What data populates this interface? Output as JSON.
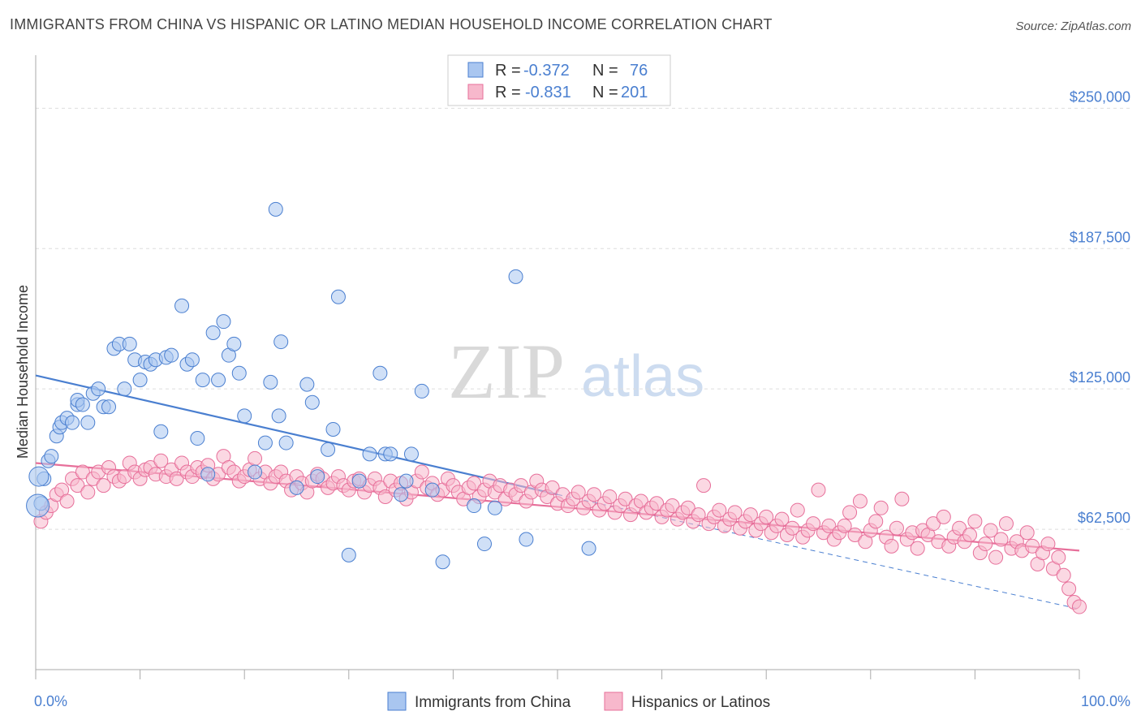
{
  "title": "IMMIGRANTS FROM CHINA VS HISPANIC OR LATINO MEDIAN HOUSEHOLD INCOME CORRELATION CHART",
  "source": "Source: ZipAtlas.com",
  "watermark": {
    "zip": "ZIP",
    "atlas": "atlas"
  },
  "colors": {
    "blue": "#4a7fd0",
    "blue_fill": "#a9c6f0",
    "pink": "#e76f9a",
    "pink_fill": "#f7b8cc",
    "grid": "#dddddd"
  },
  "chart_data": {
    "type": "scatter",
    "xlabel_left": "0.0%",
    "xlabel_right": "100.0%",
    "ylabel": "Median Household Income",
    "xlim": [
      0,
      100
    ],
    "ylim": [
      0,
      270000
    ],
    "yticks": [
      {
        "value": 250000,
        "label": "$250,000"
      },
      {
        "value": 187500,
        "label": "$187,500"
      },
      {
        "value": 125000,
        "label": "$125,000"
      },
      {
        "value": 62500,
        "label": "$62,500"
      }
    ],
    "legend": [
      {
        "r_label": "R =",
        "r_value": "-0.372",
        "n_label": "N =",
        "n_value": "76"
      },
      {
        "r_label": "R =",
        "r_value": "-0.831",
        "n_label": "N =",
        "n_value": "201"
      }
    ],
    "series": [
      {
        "name": "Immigrants from China",
        "trend": {
          "x0": 0,
          "y0": 131000,
          "x1": 50,
          "y1": 78000,
          "x_dash_end": 100,
          "y_dash_end": 27000
        },
        "points": [
          [
            0.5,
            74000
          ],
          [
            0.8,
            85000
          ],
          [
            1.2,
            93000
          ],
          [
            1.5,
            95000
          ],
          [
            2,
            104000
          ],
          [
            2.3,
            108000
          ],
          [
            2.5,
            110000
          ],
          [
            3,
            112000
          ],
          [
            3.5,
            110000
          ],
          [
            4,
            118000
          ],
          [
            4,
            120000
          ],
          [
            4.5,
            118000
          ],
          [
            5,
            110000
          ],
          [
            5.5,
            123000
          ],
          [
            6,
            125000
          ],
          [
            6.5,
            117000
          ],
          [
            7,
            117000
          ],
          [
            7.5,
            143000
          ],
          [
            8,
            145000
          ],
          [
            8.5,
            125000
          ],
          [
            9,
            145000
          ],
          [
            9.5,
            138000
          ],
          [
            10,
            129000
          ],
          [
            10.5,
            137000
          ],
          [
            11,
            136000
          ],
          [
            11.5,
            138000
          ],
          [
            12,
            106000
          ],
          [
            12.5,
            139000
          ],
          [
            13,
            140000
          ],
          [
            14,
            162000
          ],
          [
            14.5,
            136000
          ],
          [
            15,
            138000
          ],
          [
            15.5,
            103000
          ],
          [
            16,
            129000
          ],
          [
            16.5,
            87000
          ],
          [
            17,
            150000
          ],
          [
            17.5,
            129000
          ],
          [
            18,
            155000
          ],
          [
            18.5,
            140000
          ],
          [
            19,
            145000
          ],
          [
            19.5,
            132000
          ],
          [
            20,
            113000
          ],
          [
            21,
            88000
          ],
          [
            22,
            101000
          ],
          [
            22.5,
            128000
          ],
          [
            23,
            205000
          ],
          [
            23.3,
            113000
          ],
          [
            23.5,
            146000
          ],
          [
            24,
            101000
          ],
          [
            25,
            81000
          ],
          [
            26,
            127000
          ],
          [
            26.5,
            119000
          ],
          [
            27,
            86000
          ],
          [
            28,
            98000
          ],
          [
            28.5,
            107000
          ],
          [
            29,
            166000
          ],
          [
            30,
            51000
          ],
          [
            31,
            84000
          ],
          [
            32,
            96000
          ],
          [
            33,
            132000
          ],
          [
            33.5,
            96000
          ],
          [
            34,
            96000
          ],
          [
            35,
            78000
          ],
          [
            35.5,
            84000
          ],
          [
            36,
            96000
          ],
          [
            37,
            124000
          ],
          [
            38,
            80000
          ],
          [
            39,
            48000
          ],
          [
            42,
            73000
          ],
          [
            43,
            56000
          ],
          [
            44,
            72000
          ],
          [
            46,
            175000
          ],
          [
            47,
            58000
          ],
          [
            53,
            54000
          ]
        ]
      },
      {
        "name": "Hispanics or Latinos",
        "trend": {
          "x0": 0,
          "y0": 92000,
          "x1": 100,
          "y1": 53000
        },
        "points": [
          [
            0.5,
            66000
          ],
          [
            1,
            70000
          ],
          [
            1.5,
            73000
          ],
          [
            2,
            78000
          ],
          [
            2.5,
            80000
          ],
          [
            3,
            75000
          ],
          [
            3.5,
            85000
          ],
          [
            4,
            82000
          ],
          [
            4.5,
            88000
          ],
          [
            5,
            79000
          ],
          [
            5.5,
            85000
          ],
          [
            6,
            88000
          ],
          [
            6.5,
            82000
          ],
          [
            7,
            90000
          ],
          [
            7.5,
            86000
          ],
          [
            8,
            84000
          ],
          [
            8.5,
            86000
          ],
          [
            9,
            92000
          ],
          [
            9.5,
            88000
          ],
          [
            10,
            85000
          ],
          [
            10.5,
            89000
          ],
          [
            11,
            90000
          ],
          [
            11.5,
            87000
          ],
          [
            12,
            93000
          ],
          [
            12.5,
            86000
          ],
          [
            13,
            89000
          ],
          [
            13.5,
            85000
          ],
          [
            14,
            92000
          ],
          [
            14.5,
            88000
          ],
          [
            15,
            86000
          ],
          [
            15.5,
            90000
          ],
          [
            16,
            88000
          ],
          [
            16.5,
            91000
          ],
          [
            17,
            85000
          ],
          [
            17.5,
            87000
          ],
          [
            18,
            95000
          ],
          [
            18.5,
            90000
          ],
          [
            19,
            88000
          ],
          [
            19.5,
            84000
          ],
          [
            20,
            86000
          ],
          [
            20.5,
            89000
          ],
          [
            21,
            94000
          ],
          [
            21.5,
            85000
          ],
          [
            22,
            88000
          ],
          [
            22.5,
            83000
          ],
          [
            23,
            86000
          ],
          [
            23.5,
            88000
          ],
          [
            24,
            84000
          ],
          [
            24.5,
            80000
          ],
          [
            25,
            86000
          ],
          [
            25.5,
            83000
          ],
          [
            26,
            79000
          ],
          [
            26.5,
            84000
          ],
          [
            27,
            87000
          ],
          [
            27.5,
            85000
          ],
          [
            28,
            81000
          ],
          [
            28.5,
            83000
          ],
          [
            29,
            86000
          ],
          [
            29.5,
            82000
          ],
          [
            30,
            80000
          ],
          [
            30.5,
            84000
          ],
          [
            31,
            85000
          ],
          [
            31.5,
            79000
          ],
          [
            32,
            82000
          ],
          [
            32.5,
            85000
          ],
          [
            33,
            81000
          ],
          [
            33.5,
            77000
          ],
          [
            34,
            84000
          ],
          [
            34.5,
            80000
          ],
          [
            35,
            83000
          ],
          [
            35.5,
            76000
          ],
          [
            36,
            79000
          ],
          [
            36.5,
            84000
          ],
          [
            37,
            88000
          ],
          [
            37.5,
            81000
          ],
          [
            38,
            83000
          ],
          [
            38.5,
            78000
          ],
          [
            39,
            80000
          ],
          [
            39.5,
            85000
          ],
          [
            40,
            82000
          ],
          [
            40.5,
            79000
          ],
          [
            41,
            76000
          ],
          [
            41.5,
            81000
          ],
          [
            42,
            83000
          ],
          [
            42.5,
            77000
          ],
          [
            43,
            80000
          ],
          [
            43.5,
            84000
          ],
          [
            44,
            79000
          ],
          [
            44.5,
            82000
          ],
          [
            45,
            76000
          ],
          [
            45.5,
            80000
          ],
          [
            46,
            78000
          ],
          [
            46.5,
            82000
          ],
          [
            47,
            75000
          ],
          [
            47.5,
            79000
          ],
          [
            48,
            84000
          ],
          [
            48.5,
            80000
          ],
          [
            49,
            77000
          ],
          [
            49.5,
            81000
          ],
          [
            50,
            74000
          ],
          [
            50.5,
            78000
          ],
          [
            51,
            73000
          ],
          [
            51.5,
            76000
          ],
          [
            52,
            79000
          ],
          [
            52.5,
            72000
          ],
          [
            53,
            75000
          ],
          [
            53.5,
            78000
          ],
          [
            54,
            71000
          ],
          [
            54.5,
            74000
          ],
          [
            55,
            77000
          ],
          [
            55.5,
            70000
          ],
          [
            56,
            73000
          ],
          [
            56.5,
            76000
          ],
          [
            57,
            69000
          ],
          [
            57.5,
            73000
          ],
          [
            58,
            75000
          ],
          [
            58.5,
            70000
          ],
          [
            59,
            72000
          ],
          [
            59.5,
            74000
          ],
          [
            60,
            68000
          ],
          [
            60.5,
            71000
          ],
          [
            61,
            73000
          ],
          [
            61.5,
            67000
          ],
          [
            62,
            70000
          ],
          [
            62.5,
            72000
          ],
          [
            63,
            66000
          ],
          [
            63.5,
            69000
          ],
          [
            64,
            82000
          ],
          [
            64.5,
            65000
          ],
          [
            65,
            68000
          ],
          [
            65.5,
            71000
          ],
          [
            66,
            64000
          ],
          [
            66.5,
            67000
          ],
          [
            67,
            70000
          ],
          [
            67.5,
            63000
          ],
          [
            68,
            66000
          ],
          [
            68.5,
            69000
          ],
          [
            69,
            62000
          ],
          [
            69.5,
            65000
          ],
          [
            70,
            68000
          ],
          [
            70.5,
            61000
          ],
          [
            71,
            64000
          ],
          [
            71.5,
            67000
          ],
          [
            72,
            60000
          ],
          [
            72.5,
            63000
          ],
          [
            73,
            71000
          ],
          [
            73.5,
            59000
          ],
          [
            74,
            62000
          ],
          [
            74.5,
            65000
          ],
          [
            75,
            80000
          ],
          [
            75.5,
            61000
          ],
          [
            76,
            64000
          ],
          [
            76.5,
            58000
          ],
          [
            77,
            61000
          ],
          [
            77.5,
            64000
          ],
          [
            78,
            70000
          ],
          [
            78.5,
            60000
          ],
          [
            79,
            75000
          ],
          [
            79.5,
            57000
          ],
          [
            80,
            62000
          ],
          [
            80.5,
            66000
          ],
          [
            81,
            72000
          ],
          [
            81.5,
            59000
          ],
          [
            82,
            55000
          ],
          [
            82.5,
            63000
          ],
          [
            83,
            76000
          ],
          [
            83.5,
            58000
          ],
          [
            84,
            61000
          ],
          [
            84.5,
            54000
          ],
          [
            85,
            62000
          ],
          [
            85.5,
            60000
          ],
          [
            86,
            65000
          ],
          [
            86.5,
            57000
          ],
          [
            87,
            68000
          ],
          [
            87.5,
            55000
          ],
          [
            88,
            59000
          ],
          [
            88.5,
            63000
          ],
          [
            89,
            57000
          ],
          [
            89.5,
            60000
          ],
          [
            90,
            66000
          ],
          [
            90.5,
            52000
          ],
          [
            91,
            56000
          ],
          [
            91.5,
            62000
          ],
          [
            92,
            50000
          ],
          [
            92.5,
            58000
          ],
          [
            93,
            65000
          ],
          [
            93.5,
            54000
          ],
          [
            94,
            57000
          ],
          [
            94.5,
            53000
          ],
          [
            95,
            61000
          ],
          [
            95.5,
            55000
          ],
          [
            96,
            47000
          ],
          [
            96.5,
            52000
          ],
          [
            97,
            56000
          ],
          [
            97.5,
            45000
          ],
          [
            98,
            50000
          ],
          [
            98.5,
            42000
          ],
          [
            99,
            36000
          ],
          [
            99.5,
            30000
          ],
          [
            100,
            28000
          ]
        ]
      }
    ]
  }
}
